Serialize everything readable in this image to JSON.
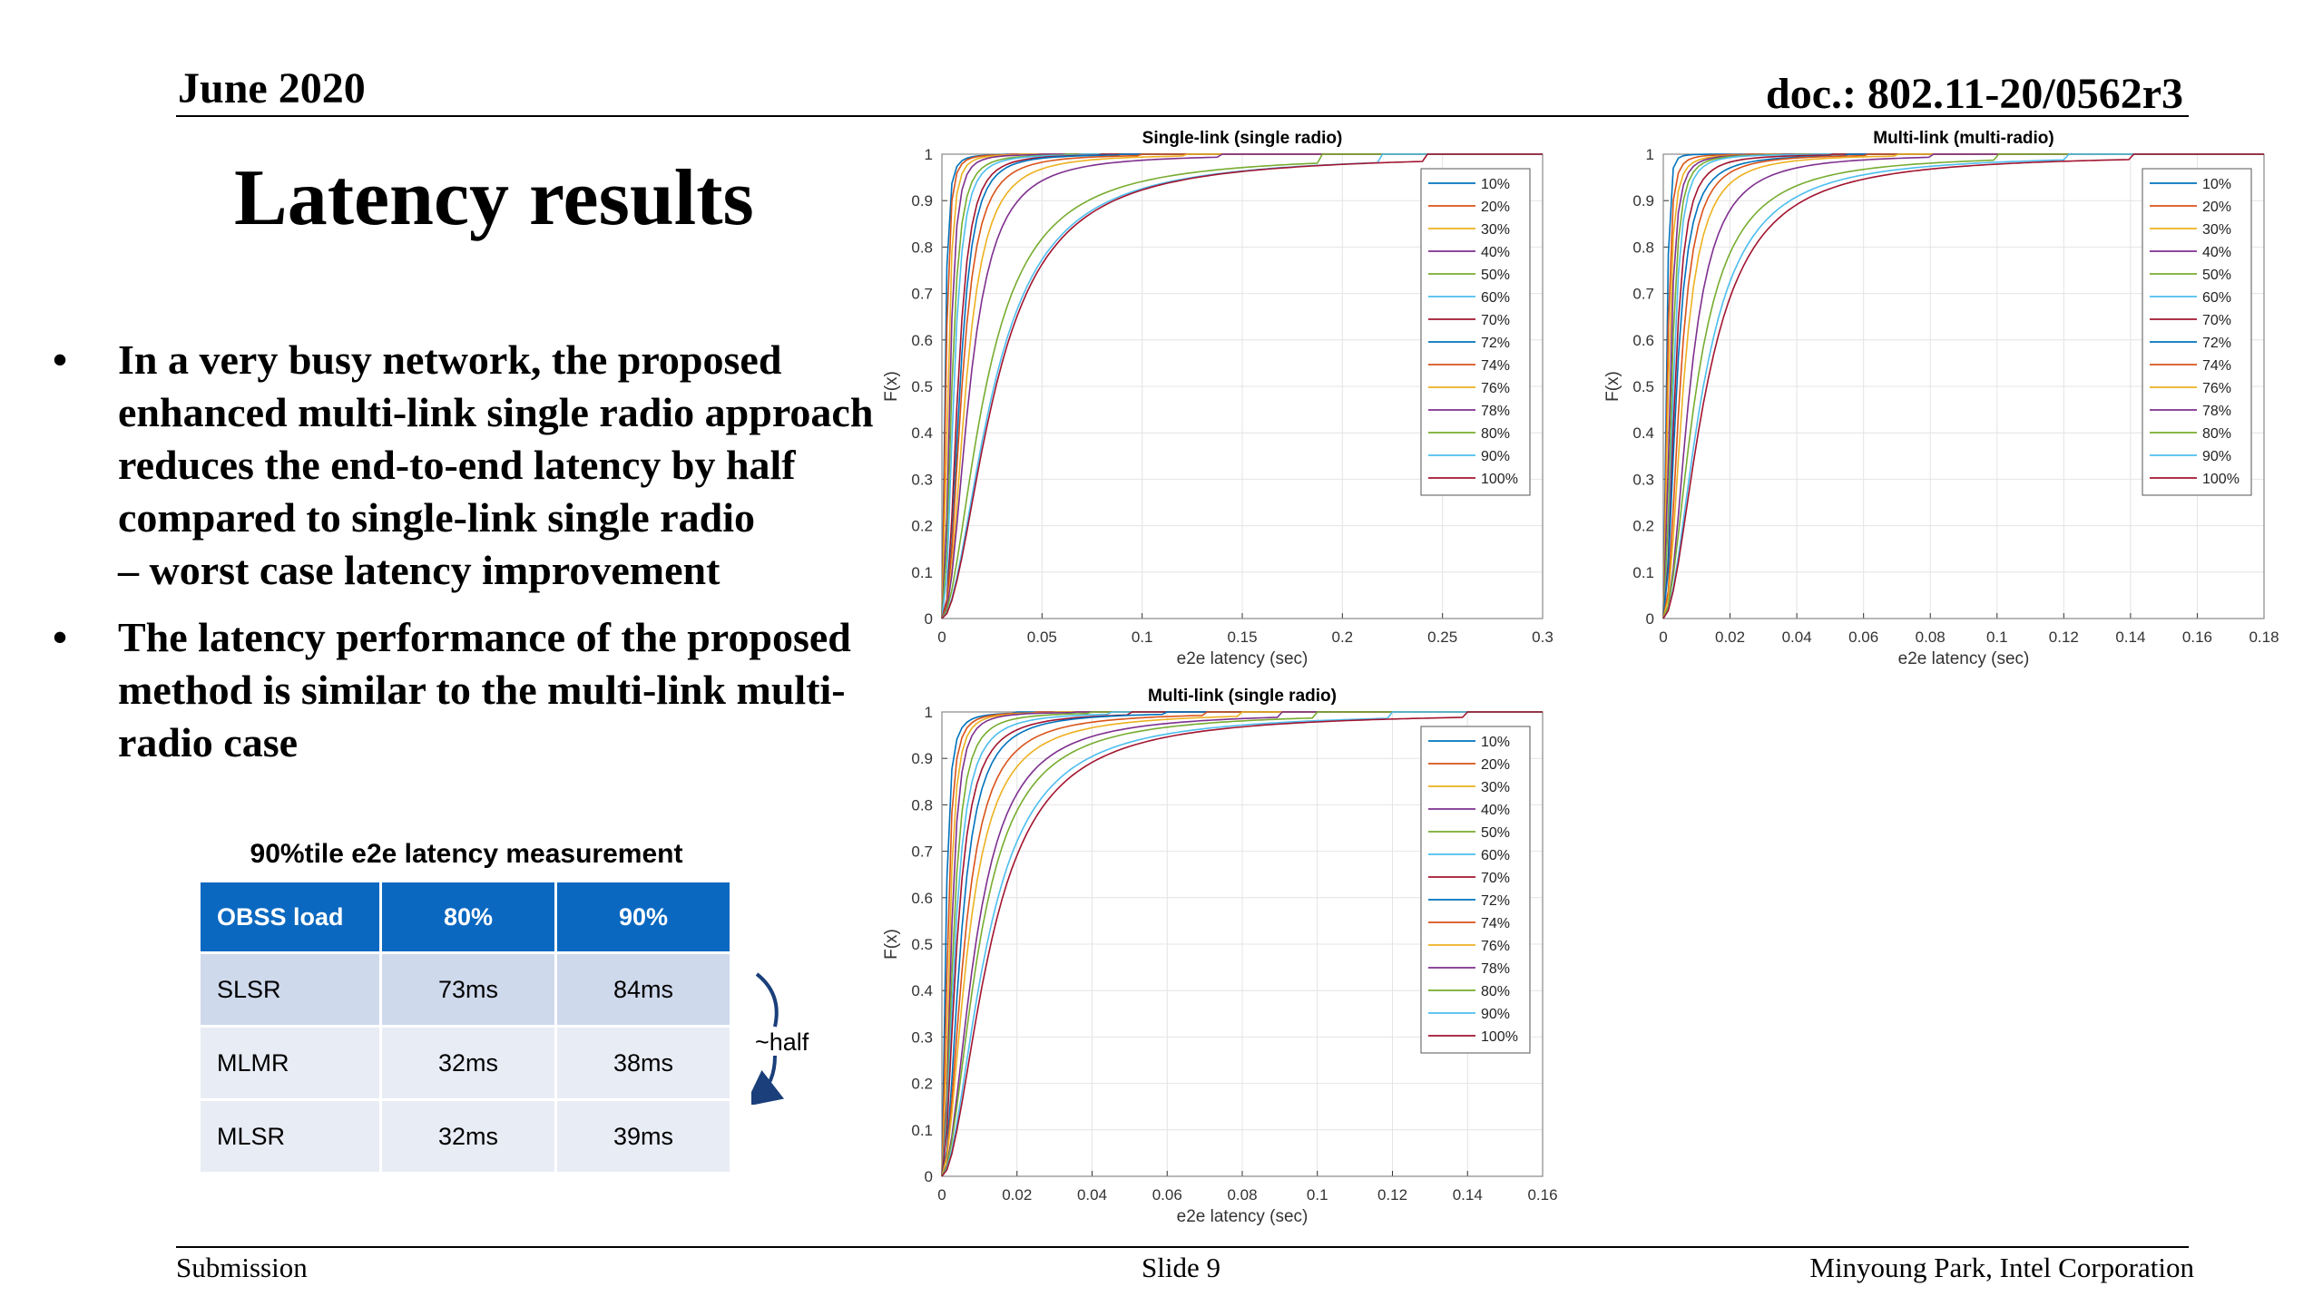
{
  "header": {
    "date": "June 2020",
    "doc": "doc.: 802.11-20/0562r3"
  },
  "slide": {
    "title": "Latency results",
    "bullets": [
      {
        "text": "In a very busy network, the proposed enhanced multi-link single radio approach reduces the end-to-end latency by half compared to single-link single radio",
        "sub": "– worst case latency improvement"
      },
      {
        "text": "The latency performance of the proposed method is similar to the multi-link multi-radio case",
        "sub": ""
      }
    ],
    "table": {
      "caption": "90%tile e2e latency measurement",
      "headers": [
        "OBSS load",
        "80%",
        "90%"
      ],
      "rows": [
        [
          "SLSR",
          "73ms",
          "84ms"
        ],
        [
          "MLMR",
          "32ms",
          "38ms"
        ],
        [
          "MLSR",
          "32ms",
          "39ms"
        ]
      ],
      "note": "~half"
    }
  },
  "colors": {
    "table_header": "#0a68c0",
    "series": [
      "#0072bd",
      "#d95319",
      "#edb120",
      "#7e2f8e",
      "#77ac30",
      "#4dbeee",
      "#a2142f",
      "#0072bd",
      "#d95319",
      "#edb120",
      "#7e2f8e",
      "#77ac30",
      "#4dbeee",
      "#a2142f"
    ]
  },
  "chart_data": [
    {
      "type": "line",
      "title": "Single-link (single radio)",
      "xlabel": "e2e latency (sec)",
      "ylabel": "F(x)",
      "xlim": [
        0,
        0.3
      ],
      "ylim": [
        0,
        1
      ],
      "xticks": [
        0,
        0.05,
        0.1,
        0.15,
        0.2,
        0.25,
        0.3
      ],
      "xtick_labels": [
        "0",
        "0.05",
        "0.1",
        "0.15",
        "0.2",
        "0.25",
        "0.3"
      ],
      "yticks": [
        0,
        0.1,
        0.2,
        0.3,
        0.4,
        0.5,
        0.6,
        0.7,
        0.8,
        0.9,
        1
      ],
      "ytick_labels": [
        "0",
        "0.1",
        "0.2",
        "0.3",
        "0.4",
        "0.5",
        "0.6",
        "0.7",
        "0.8",
        "0.9",
        "1"
      ],
      "grid": true,
      "legend_position": "top-right",
      "distribution": "cdf",
      "series": [
        {
          "name": "10%",
          "median": 0.0015,
          "p90": 0.004,
          "xmax": 0.03
        },
        {
          "name": "20%",
          "median": 0.002,
          "p90": 0.005,
          "xmax": 0.035
        },
        {
          "name": "30%",
          "median": 0.003,
          "p90": 0.007,
          "xmax": 0.04
        },
        {
          "name": "40%",
          "median": 0.004,
          "p90": 0.009,
          "xmax": 0.05
        },
        {
          "name": "50%",
          "median": 0.005,
          "p90": 0.012,
          "xmax": 0.06
        },
        {
          "name": "60%",
          "median": 0.006,
          "p90": 0.014,
          "xmax": 0.07
        },
        {
          "name": "70%",
          "median": 0.008,
          "p90": 0.018,
          "xmax": 0.08
        },
        {
          "name": "72%",
          "median": 0.009,
          "p90": 0.02,
          "xmax": 0.09
        },
        {
          "name": "74%",
          "median": 0.01,
          "p90": 0.024,
          "xmax": 0.1
        },
        {
          "name": "76%",
          "median": 0.012,
          "p90": 0.03,
          "xmax": 0.12
        },
        {
          "name": "78%",
          "median": 0.014,
          "p90": 0.038,
          "xmax": 0.14
        },
        {
          "name": "80%",
          "median": 0.022,
          "p90": 0.073,
          "xmax": 0.19
        },
        {
          "name": "90%",
          "median": 0.026,
          "p90": 0.084,
          "xmax": 0.22
        },
        {
          "name": "100%",
          "median": 0.027,
          "p90": 0.086,
          "xmax": 0.24
        }
      ]
    },
    {
      "type": "line",
      "title": "Multi-link (multi-radio)",
      "xlabel": "e2e latency (sec)",
      "ylabel": "F(x)",
      "xlim": [
        0,
        0.18
      ],
      "ylim": [
        0,
        1
      ],
      "xticks": [
        0,
        0.02,
        0.04,
        0.06,
        0.08,
        0.1,
        0.12,
        0.14,
        0.16,
        0.18
      ],
      "xtick_labels": [
        "0",
        "0.02",
        "0.04",
        "0.06",
        "0.08",
        "0.1",
        "0.12",
        "0.14",
        "0.16",
        "0.18"
      ],
      "yticks": [
        0,
        0.1,
        0.2,
        0.3,
        0.4,
        0.5,
        0.6,
        0.7,
        0.8,
        0.9,
        1
      ],
      "ytick_labels": [
        "0",
        "0.1",
        "0.2",
        "0.3",
        "0.4",
        "0.5",
        "0.6",
        "0.7",
        "0.8",
        "0.9",
        "1"
      ],
      "grid": true,
      "legend_position": "top-right",
      "distribution": "cdf",
      "series": [
        {
          "name": "10%",
          "median": 0.001,
          "p90": 0.002,
          "xmax": 0.02
        },
        {
          "name": "20%",
          "median": 0.0012,
          "p90": 0.003,
          "xmax": 0.025
        },
        {
          "name": "30%",
          "median": 0.0015,
          "p90": 0.004,
          "xmax": 0.03
        },
        {
          "name": "40%",
          "median": 0.002,
          "p90": 0.005,
          "xmax": 0.035
        },
        {
          "name": "50%",
          "median": 0.0025,
          "p90": 0.006,
          "xmax": 0.04
        },
        {
          "name": "60%",
          "median": 0.003,
          "p90": 0.007,
          "xmax": 0.045
        },
        {
          "name": "70%",
          "median": 0.0035,
          "p90": 0.009,
          "xmax": 0.05
        },
        {
          "name": "72%",
          "median": 0.004,
          "p90": 0.011,
          "xmax": 0.055
        },
        {
          "name": "74%",
          "median": 0.005,
          "p90": 0.013,
          "xmax": 0.06
        },
        {
          "name": "76%",
          "median": 0.006,
          "p90": 0.016,
          "xmax": 0.07
        },
        {
          "name": "78%",
          "median": 0.008,
          "p90": 0.022,
          "xmax": 0.08
        },
        {
          "name": "80%",
          "median": 0.01,
          "p90": 0.032,
          "xmax": 0.1
        },
        {
          "name": "90%",
          "median": 0.012,
          "p90": 0.038,
          "xmax": 0.12
        },
        {
          "name": "100%",
          "median": 0.013,
          "p90": 0.042,
          "xmax": 0.14
        }
      ]
    },
    {
      "type": "line",
      "title": "Multi-link (single radio)",
      "xlabel": "e2e latency (sec)",
      "ylabel": "F(x)",
      "xlim": [
        0,
        0.16
      ],
      "ylim": [
        0,
        1
      ],
      "xticks": [
        0,
        0.02,
        0.04,
        0.06,
        0.08,
        0.1,
        0.12,
        0.14,
        0.16
      ],
      "xtick_labels": [
        "0",
        "0.02",
        "0.04",
        "0.06",
        "0.08",
        "0.1",
        "0.12",
        "0.14",
        "0.16"
      ],
      "yticks": [
        0,
        0.1,
        0.2,
        0.3,
        0.4,
        0.5,
        0.6,
        0.7,
        0.8,
        0.9,
        1
      ],
      "ytick_labels": [
        "0",
        "0.1",
        "0.2",
        "0.3",
        "0.4",
        "0.5",
        "0.6",
        "0.7",
        "0.8",
        "0.9",
        "1"
      ],
      "grid": true,
      "legend_position": "top-right",
      "distribution": "cdf",
      "series": [
        {
          "name": "10%",
          "median": 0.001,
          "p90": 0.003,
          "xmax": 0.02
        },
        {
          "name": "20%",
          "median": 0.0015,
          "p90": 0.004,
          "xmax": 0.025
        },
        {
          "name": "30%",
          "median": 0.002,
          "p90": 0.005,
          "xmax": 0.03
        },
        {
          "name": "40%",
          "median": 0.0025,
          "p90": 0.006,
          "xmax": 0.035
        },
        {
          "name": "50%",
          "median": 0.003,
          "p90": 0.008,
          "xmax": 0.04
        },
        {
          "name": "60%",
          "median": 0.0035,
          "p90": 0.01,
          "xmax": 0.045
        },
        {
          "name": "70%",
          "median": 0.004,
          "p90": 0.012,
          "xmax": 0.05
        },
        {
          "name": "72%",
          "median": 0.005,
          "p90": 0.014,
          "xmax": 0.06
        },
        {
          "name": "74%",
          "median": 0.006,
          "p90": 0.018,
          "xmax": 0.07
        },
        {
          "name": "76%",
          "median": 0.007,
          "p90": 0.022,
          "xmax": 0.08
        },
        {
          "name": "78%",
          "median": 0.009,
          "p90": 0.028,
          "xmax": 0.09
        },
        {
          "name": "80%",
          "median": 0.01,
          "p90": 0.032,
          "xmax": 0.1
        },
        {
          "name": "90%",
          "median": 0.012,
          "p90": 0.039,
          "xmax": 0.12
        },
        {
          "name": "100%",
          "median": 0.013,
          "p90": 0.042,
          "xmax": 0.14
        }
      ]
    }
  ],
  "footer": {
    "left": "Submission",
    "center": "Slide 9",
    "right": "Minyoung Park, Intel Corporation"
  }
}
